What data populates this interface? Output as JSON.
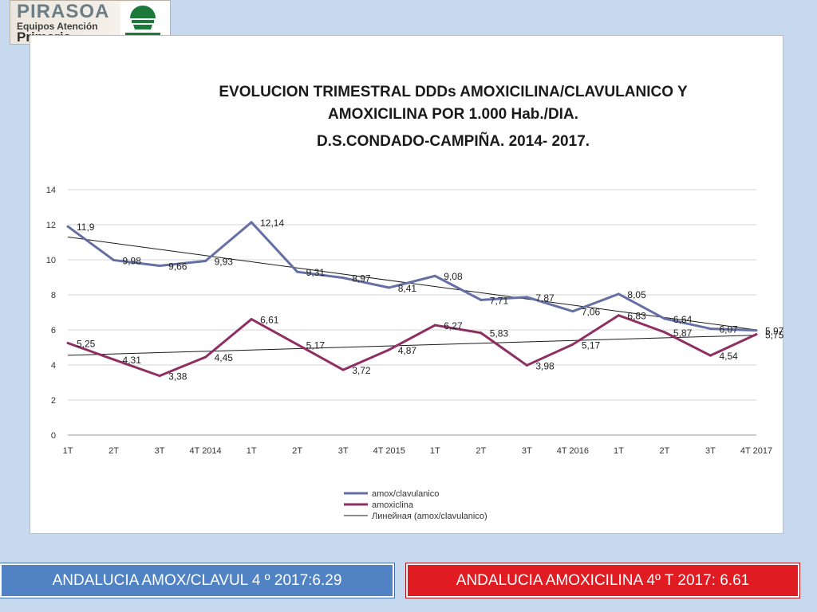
{
  "logo": {
    "line1": "PIRASOA",
    "line2": "Equipos Atención",
    "line3": "Primaria",
    "seal_icon": "junta-de-andalucia-seal-icon"
  },
  "chart_data": {
    "type": "line",
    "title_lines": [
      "EVOLUCION TRIMESTRAL DDDs AMOXICILINA/CLAVULANICO Y",
      "AMOXICILINA POR 1.000 Hab./DIA.",
      "D.S.CONDADO-CAMPIÑA. 2014- 2017."
    ],
    "categories": [
      "1T",
      "2T",
      "3T",
      "4T 2014",
      "1T",
      "2T",
      "3T",
      "4T 2015",
      "1T",
      "2T",
      "3T",
      "4T 2016",
      "1T",
      "2T",
      "3T",
      "4T 2017"
    ],
    "ylim": [
      0,
      14
    ],
    "yticks": [
      0,
      2,
      4,
      6,
      8,
      10,
      12,
      14
    ],
    "grid": true,
    "legend_position": "bottom",
    "series": [
      {
        "name": "amox/clavulanico",
        "color": "#6470a4",
        "values": [
          11.9,
          9.98,
          9.66,
          9.93,
          12.14,
          9.31,
          8.97,
          8.41,
          9.08,
          7.71,
          7.87,
          7.06,
          8.05,
          6.64,
          6.07,
          5.97
        ],
        "labels": [
          "11,9",
          "9,98",
          "9,66",
          "9,93",
          "12,14",
          "9,31",
          "8,97",
          "8,41",
          "9,08",
          "7,71",
          "7,87",
          "7,06",
          "8,05",
          "6,64",
          "6,07",
          "5,97"
        ]
      },
      {
        "name": "amoxiclina",
        "color": "#8e2e62",
        "values": [
          5.25,
          4.31,
          3.38,
          4.45,
          6.61,
          5.17,
          3.72,
          4.87,
          6.27,
          5.83,
          3.98,
          5.17,
          6.83,
          5.87,
          4.54,
          5.75
        ],
        "labels": [
          "5,25",
          "4,31",
          "3,38",
          "4,45",
          "6,61",
          "5,17",
          "3,72",
          "4,87",
          "6,27",
          "5,83",
          "3,98",
          "5,17",
          "6,83",
          "5,87",
          "4,54",
          "5,75"
        ]
      }
    ],
    "trendlines": [
      {
        "name": "Линейная (amox/clavulanico)",
        "color": "#1a1a1a",
        "from": 11.3,
        "to": 6.0,
        "in_legend": true
      },
      {
        "name": "",
        "color": "#1a1a1a",
        "from": 4.55,
        "to": 5.7,
        "in_legend": false
      }
    ]
  },
  "footer": {
    "left_text": "ANDALUCIA AMOX/CLAVUL 4 º 2017:6.29",
    "right_text": "ANDALUCIA AMOXICILINA 4º T 2017: 6.61",
    "left_color": "#5183c4",
    "right_color": "#e01b22"
  }
}
